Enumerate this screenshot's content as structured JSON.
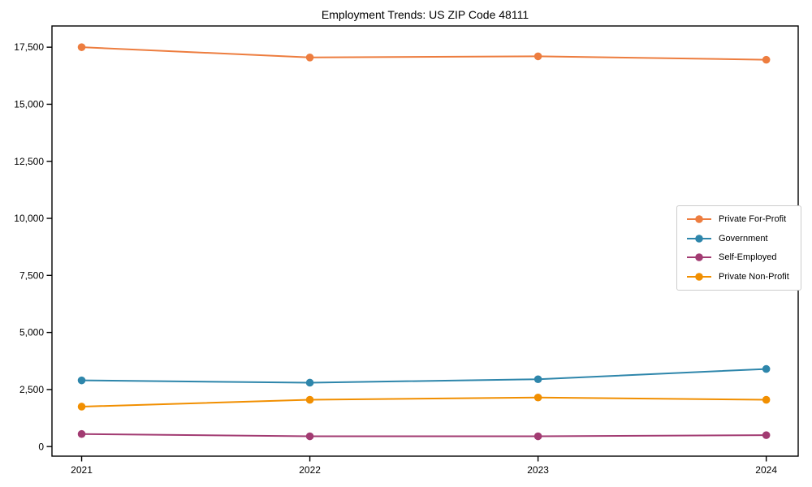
{
  "chart_data": {
    "type": "line",
    "title": "Employment Trends: US ZIP Code 48111",
    "x": [
      2021,
      2022,
      2023,
      2024
    ],
    "x_tick_labels": [
      "2021",
      "2022",
      "2023",
      "2024"
    ],
    "series": [
      {
        "name": "Private For-Profit",
        "color": "#ed7d3f",
        "values": [
          17500,
          17050,
          17100,
          16950
        ]
      },
      {
        "name": "Government",
        "color": "#2e86ab",
        "values": [
          2900,
          2800,
          2950,
          3400
        ]
      },
      {
        "name": "Self-Employed",
        "color": "#a23b72",
        "values": [
          550,
          450,
          450,
          500
        ]
      },
      {
        "name": "Private Non-Profit",
        "color": "#f18f01",
        "values": [
          1750,
          2050,
          2150,
          2050
        ]
      }
    ],
    "yticks": [
      0,
      2500,
      5000,
      7500,
      10000,
      12500,
      15000,
      17500
    ],
    "ytick_labels": [
      "0",
      "2,500",
      "5,000",
      "7,500",
      "10,000",
      "12,500",
      "15,000",
      "17,500"
    ],
    "ylim": [
      -420,
      18430
    ],
    "xlim": [
      2020.87,
      2024.14
    ],
    "xlabel": "",
    "ylabel": "",
    "grid": false,
    "legend_position": "center right",
    "marker": "circle",
    "axes_color": "#000000",
    "background_color": "#ffffff"
  }
}
